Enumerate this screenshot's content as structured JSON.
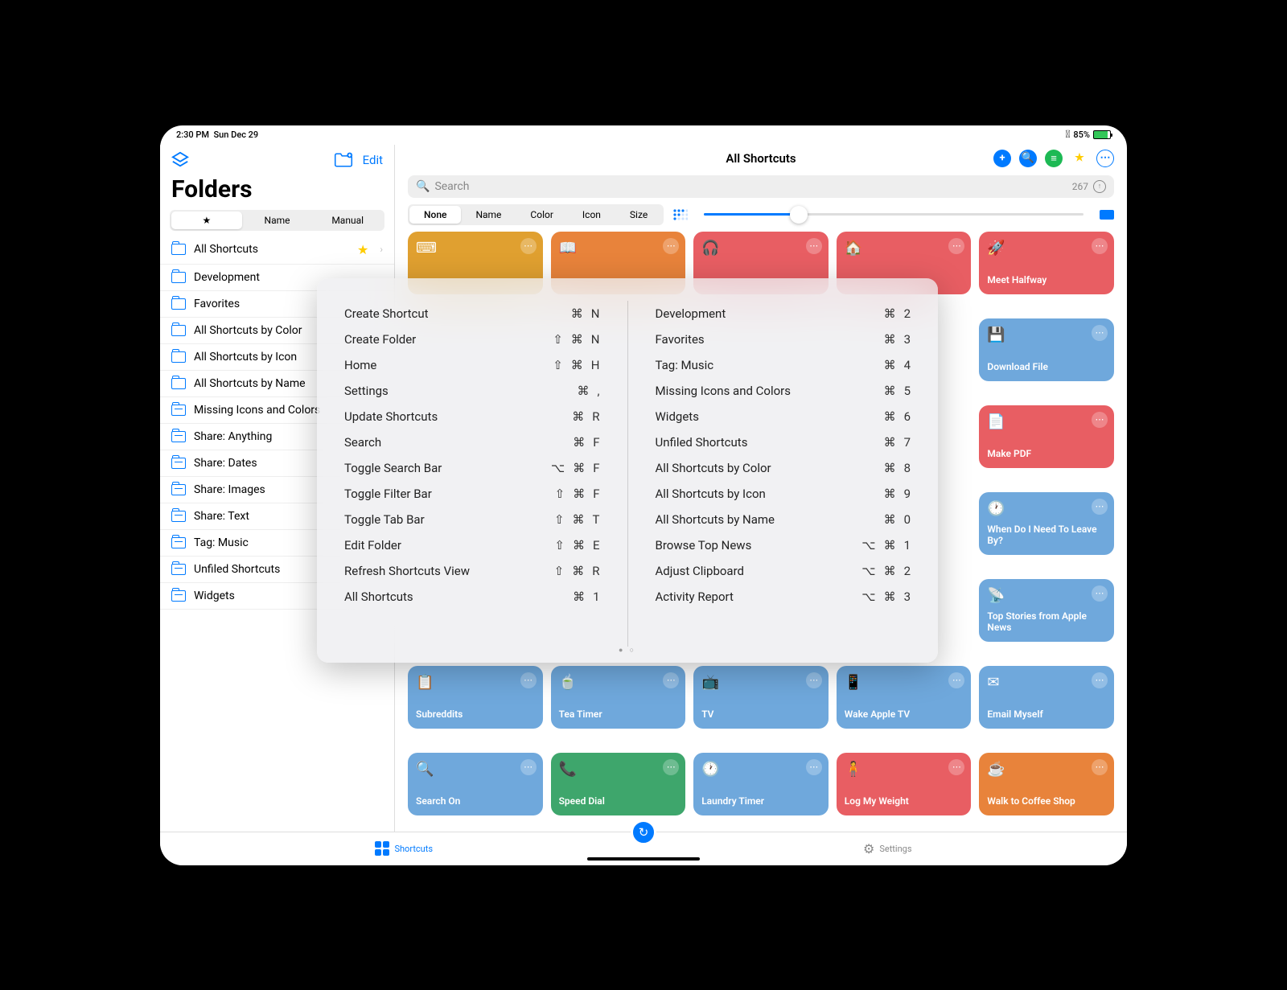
{
  "status": {
    "time": "2:30 PM",
    "date": "Sun Dec 29",
    "battery": "85%"
  },
  "sidebar": {
    "title": "Folders",
    "edit": "Edit",
    "segments": [
      "★",
      "Name",
      "Manual"
    ],
    "selectedSeg": 0,
    "items": [
      {
        "label": "All Shortcuts",
        "star": true,
        "chev": true
      },
      {
        "label": "Development"
      },
      {
        "label": "Favorites"
      },
      {
        "label": "All Shortcuts by Color"
      },
      {
        "label": "All Shortcuts by Icon"
      },
      {
        "label": "All Shortcuts by Name"
      },
      {
        "label": "Missing Icons and Colors",
        "dash": true
      },
      {
        "label": "Share: Anything",
        "dash": true
      },
      {
        "label": "Share: Dates",
        "dash": true
      },
      {
        "label": "Share: Images",
        "dash": true
      },
      {
        "label": "Share: Text",
        "dash": true
      },
      {
        "label": "Tag: Music",
        "dash": true
      },
      {
        "label": "Unfiled Shortcuts",
        "dash": true
      },
      {
        "label": "Widgets",
        "dash": true
      }
    ]
  },
  "main": {
    "title": "All Shortcuts",
    "search": {
      "placeholder": "Search",
      "count": "267"
    },
    "filters": [
      "None",
      "Name",
      "Color",
      "Icon",
      "Size"
    ],
    "selectedFilter": 0,
    "actionIcons": [
      {
        "name": "add",
        "bg": "#007aff",
        "glyph": "+"
      },
      {
        "name": "search",
        "bg": "#007aff",
        "glyph": "🔍"
      },
      {
        "name": "spotify",
        "bg": "#1db954",
        "glyph": "≡"
      },
      {
        "name": "star",
        "bg": "transparent",
        "glyph": "★",
        "color": "#ffcc00"
      },
      {
        "name": "more",
        "bg": "transparent",
        "glyph": "⋯",
        "color": "#007aff",
        "border": true
      }
    ],
    "cards": [
      {
        "bg": "#e0a030",
        "icon": "⌨"
      },
      {
        "bg": "#e8833b",
        "icon": "📖"
      },
      {
        "bg": "#e85e63",
        "icon": "🎧"
      },
      {
        "bg": "#e85e63",
        "icon": "🏠"
      },
      {
        "bg": "#e85e63",
        "icon": "🚀",
        "label": "Meet Halfway"
      },
      {
        "bg": "#6fa8dc",
        "icon": "💾",
        "label": "Download File"
      },
      {
        "bg": "#e85e63",
        "icon": "📄",
        "label": "Make PDF"
      },
      {
        "bg": "#6fa8dc",
        "icon": "🕐",
        "label": "When Do I Need To Leave By?"
      },
      {
        "bg": "#6fa8dc",
        "icon": "📡",
        "label": "Top Stories from Apple News"
      },
      {
        "bg": "#6fa8dc",
        "icon": "✉",
        "label": "Email Myself"
      },
      {
        "bg": "#6fa8dc",
        "icon": "📋",
        "label": "Subreddits"
      },
      {
        "bg": "#6fa8dc",
        "icon": "🍵",
        "label": "Tea Timer"
      },
      {
        "bg": "#6fa8dc",
        "icon": "📺",
        "label": "TV"
      },
      {
        "bg": "#6fa8dc",
        "icon": "📱",
        "label": "Wake Apple TV"
      },
      {
        "bg": "#6fa8dc",
        "icon": "🔍",
        "label": "Search On"
      },
      {
        "bg": "#3ea66c",
        "icon": "📞",
        "label": "Speed Dial"
      },
      {
        "bg": "#6fa8dc",
        "icon": "🕐",
        "label": "Laundry Timer"
      },
      {
        "bg": "#e85e63",
        "icon": "🧍",
        "label": "Log My Weight"
      },
      {
        "bg": "#e8833b",
        "icon": "☕",
        "label": "Walk to Coffee Shop"
      }
    ]
  },
  "tabs": {
    "shortcuts": "Shortcuts",
    "settings": "Settings"
  },
  "overlay": {
    "left": [
      {
        "label": "Create Shortcut",
        "keys": [
          "⌘",
          "N"
        ]
      },
      {
        "label": "Create Folder",
        "keys": [
          "⇧",
          "⌘",
          "N"
        ]
      },
      {
        "label": "Home",
        "keys": [
          "⇧",
          "⌘",
          "H"
        ]
      },
      {
        "label": "Settings",
        "keys": [
          "⌘",
          ","
        ]
      },
      {
        "label": "Update Shortcuts",
        "keys": [
          "⌘",
          "R"
        ]
      },
      {
        "label": "Search",
        "keys": [
          "⌘",
          "F"
        ]
      },
      {
        "label": "Toggle Search Bar",
        "keys": [
          "⌥",
          "⌘",
          "F"
        ]
      },
      {
        "label": "Toggle Filter Bar",
        "keys": [
          "⇧",
          "⌘",
          "F"
        ]
      },
      {
        "label": "Toggle Tab Bar",
        "keys": [
          "⇧",
          "⌘",
          "T"
        ]
      },
      {
        "label": "Edit Folder",
        "keys": [
          "⇧",
          "⌘",
          "E"
        ]
      },
      {
        "label": "Refresh Shortcuts View",
        "keys": [
          "⇧",
          "⌘",
          "R"
        ]
      },
      {
        "label": "All Shortcuts",
        "keys": [
          "⌘",
          "1"
        ]
      }
    ],
    "right": [
      {
        "label": "Development",
        "keys": [
          "⌘",
          "2"
        ]
      },
      {
        "label": "Favorites",
        "keys": [
          "⌘",
          "3"
        ]
      },
      {
        "label": "Tag: Music",
        "keys": [
          "⌘",
          "4"
        ]
      },
      {
        "label": "Missing Icons and Colors",
        "keys": [
          "⌘",
          "5"
        ]
      },
      {
        "label": "Widgets",
        "keys": [
          "⌘",
          "6"
        ]
      },
      {
        "label": "Unfiled Shortcuts",
        "keys": [
          "⌘",
          "7"
        ]
      },
      {
        "label": "All Shortcuts by Color",
        "keys": [
          "⌘",
          "8"
        ]
      },
      {
        "label": "All Shortcuts by Icon",
        "keys": [
          "⌘",
          "9"
        ]
      },
      {
        "label": "All Shortcuts by Name",
        "keys": [
          "⌘",
          "0"
        ]
      },
      {
        "label": "Browse Top News",
        "keys": [
          "⌥",
          "⌘",
          "1"
        ]
      },
      {
        "label": "Adjust Clipboard",
        "keys": [
          "⌥",
          "⌘",
          "2"
        ]
      },
      {
        "label": "Activity Report",
        "keys": [
          "⌥",
          "⌘",
          "3"
        ]
      }
    ]
  }
}
